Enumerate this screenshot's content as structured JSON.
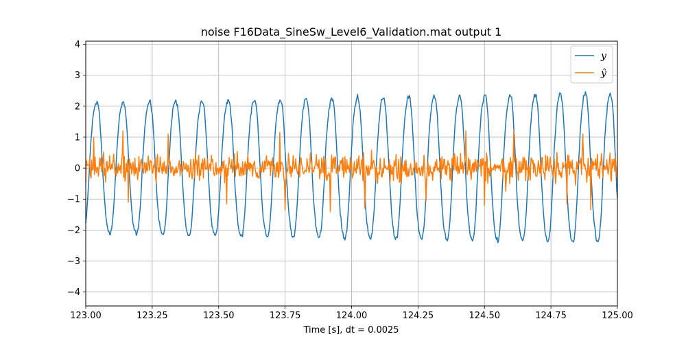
{
  "chart_data": {
    "type": "line",
    "title": "noise F16Data_SineSw_Level6_Validation.mat output 1",
    "xlabel": "Time [s], dt = 0.0025",
    "ylabel": "",
    "xlim": [
      123.0,
      125.0
    ],
    "ylim": [
      -4.45,
      4.1
    ],
    "x_ticks": [
      "123.00",
      "123.25",
      "123.50",
      "123.75",
      "124.00",
      "124.25",
      "124.50",
      "124.75",
      "125.00"
    ],
    "x_tick_values": [
      123.0,
      123.25,
      123.5,
      123.75,
      124.0,
      124.25,
      124.5,
      124.75,
      125.0
    ],
    "y_ticks": [
      "4",
      "3",
      "2",
      "1",
      "0",
      "−1",
      "−2",
      "−3",
      "−4"
    ],
    "y_tick_values": [
      4,
      3,
      2,
      1,
      0,
      -1,
      -2,
      -3,
      -4
    ],
    "grid": true,
    "legend_position": "top-right",
    "dt": 0.0025,
    "series": [
      {
        "name": "y",
        "legend_label": "y",
        "color": "#1f77b4",
        "description_of_shape": "near-sinusoidal oscillation, about 21 cycles over the window, frequency rising slightly; amplitude grows from about 2.2 to about 2.5",
        "start_time": 123.0,
        "start_value": -1.7,
        "cycles_per_second": [
          10.0,
          10.7
        ],
        "amplitude": [
          2.2,
          2.5
        ],
        "peaks": [
          {
            "x": 123.07,
            "y": 2.2
          },
          {
            "x": 123.18,
            "y": 2.2
          },
          {
            "x": 123.28,
            "y": 2.2
          },
          {
            "x": 123.38,
            "y": 2.2
          },
          {
            "x": 123.48,
            "y": 2.2
          },
          {
            "x": 123.57,
            "y": 2.25
          },
          {
            "x": 123.66,
            "y": 2.3
          },
          {
            "x": 123.76,
            "y": 2.3
          },
          {
            "x": 123.85,
            "y": 2.3
          },
          {
            "x": 123.94,
            "y": 2.3
          },
          {
            "x": 124.03,
            "y": 2.35
          },
          {
            "x": 124.12,
            "y": 2.35
          },
          {
            "x": 124.21,
            "y": 2.35
          },
          {
            "x": 124.3,
            "y": 2.4
          },
          {
            "x": 124.39,
            "y": 2.4
          },
          {
            "x": 124.48,
            "y": 2.4
          },
          {
            "x": 124.57,
            "y": 2.45
          },
          {
            "x": 124.66,
            "y": 2.45
          },
          {
            "x": 124.76,
            "y": 2.45
          },
          {
            "x": 124.86,
            "y": 2.45
          },
          {
            "x": 124.94,
            "y": 2.5
          }
        ],
        "troughs": [
          {
            "x": 123.02,
            "y": -2.25
          },
          {
            "x": 123.13,
            "y": -2.25
          },
          {
            "x": 123.23,
            "y": -2.25
          },
          {
            "x": 123.33,
            "y": -2.25
          },
          {
            "x": 123.43,
            "y": -2.3
          },
          {
            "x": 123.52,
            "y": -2.3
          },
          {
            "x": 123.62,
            "y": -2.3
          },
          {
            "x": 123.71,
            "y": -2.35
          },
          {
            "x": 123.8,
            "y": -2.35
          },
          {
            "x": 123.89,
            "y": -2.35
          },
          {
            "x": 123.98,
            "y": -2.4
          },
          {
            "x": 124.07,
            "y": -2.4
          },
          {
            "x": 124.16,
            "y": -2.4
          },
          {
            "x": 124.26,
            "y": -2.45
          },
          {
            "x": 124.35,
            "y": -2.45
          },
          {
            "x": 124.44,
            "y": -2.45
          },
          {
            "x": 124.53,
            "y": -2.45
          },
          {
            "x": 124.62,
            "y": -2.5
          },
          {
            "x": 124.71,
            "y": -2.5
          },
          {
            "x": 124.8,
            "y": -2.5
          },
          {
            "x": 124.9,
            "y": -2.55
          }
        ]
      },
      {
        "name": "y-hat",
        "legend_label": "ŷ",
        "color": "#ff7f0e",
        "description_of_shape": "noise-like signal centred near 0 with standard deviation about 0.35; peaks reach about 1.2 and dips about -1.4",
        "mean": 0.0,
        "std": 0.35,
        "max": 1.2,
        "min": -1.4,
        "notable_points": [
          {
            "x": 123.03,
            "y": 1.0
          },
          {
            "x": 123.14,
            "y": 1.2
          },
          {
            "x": 123.16,
            "y": -1.1
          },
          {
            "x": 123.31,
            "y": 1.1
          },
          {
            "x": 123.53,
            "y": -1.15
          },
          {
            "x": 123.73,
            "y": 1.15
          },
          {
            "x": 123.75,
            "y": -1.35
          },
          {
            "x": 123.92,
            "y": -1.4
          },
          {
            "x": 124.05,
            "y": -1.3
          },
          {
            "x": 124.28,
            "y": -1.05
          },
          {
            "x": 124.43,
            "y": 1.2
          },
          {
            "x": 124.5,
            "y": -1.2
          },
          {
            "x": 124.61,
            "y": 1.2
          },
          {
            "x": 124.81,
            "y": -1.15
          },
          {
            "x": 124.87,
            "y": 1.1
          },
          {
            "x": 124.9,
            "y": -1.35
          }
        ]
      }
    ]
  }
}
